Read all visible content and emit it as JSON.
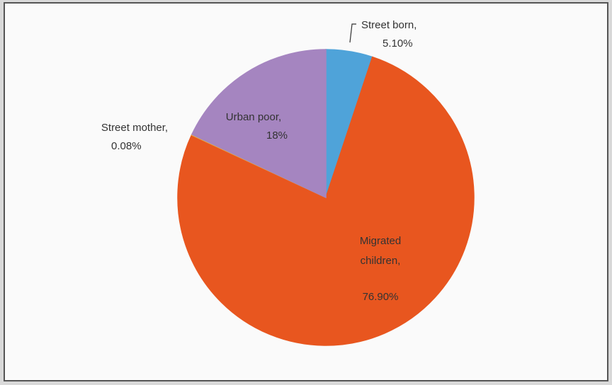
{
  "chart_data": {
    "type": "pie",
    "categories": [
      "Street born,",
      "Migrated children,",
      "Street mother,",
      "Urban poor,"
    ],
    "values": [
      5.1,
      76.9,
      0.08,
      18
    ],
    "value_labels": [
      "5.10%",
      "76.90%",
      "0.08%",
      "18%"
    ],
    "colors": [
      "#4fa3d9",
      "#e8561f",
      "#e3b04a",
      "#a585c0"
    ]
  }
}
